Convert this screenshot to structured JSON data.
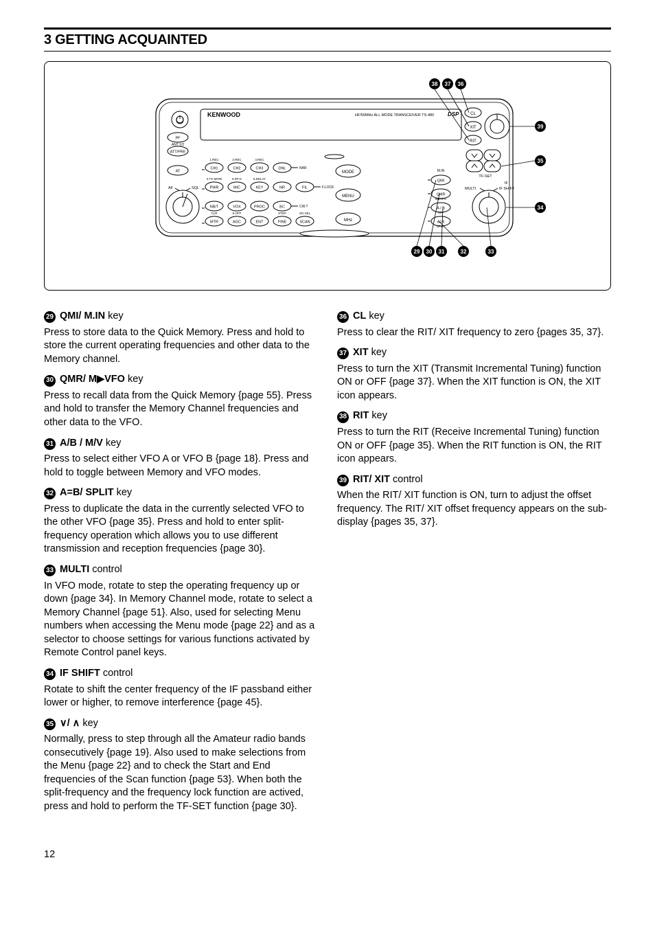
{
  "header": {
    "title": "3  GETTING ACQUAINTED"
  },
  "page_number": "12",
  "diagram": {
    "brand": "KENWOOD",
    "subtitle": "HF/50MHz  ALL MODE TRANSCEIVER  TS-480",
    "dsp": "DSP",
    "left_buttons": [
      "PF",
      "ATT/PRE",
      "AT"
    ],
    "ant_label": "ANT 1/2",
    "knob_left_labels": {
      "left": "AF",
      "right": "SQL"
    },
    "knob_right_labels": {
      "left": "MULTI",
      "right": "IF SHIFT",
      "top": "IF"
    },
    "upper_row_top": [
      "1.REC",
      "2.REC",
      "3.REC"
    ],
    "upper_row": [
      "CH1",
      "CH2",
      "CH3",
      "DNL"
    ],
    "upper_row_side": "NAR",
    "mode_label": "MODE",
    "mid_row_top": [
      "4.TX MONI",
      "5.RF.G",
      "6.DELAY"
    ],
    "mid_row": [
      "PWR",
      "MIC",
      "KEY",
      "NR",
      "FIL"
    ],
    "mid_row_side": "F.LOCK",
    "menu_label": "MENU",
    "low1_row": [
      "NB/T",
      "VOX",
      "PROC",
      "BC"
    ],
    "low1_side": "CW.T",
    "low2_top": [
      "CLR",
      "5.OFF",
      "",
      "STEP",
      "SG.SEL"
    ],
    "low2_row": [
      "MTR",
      "AGC",
      "ENT",
      "FINE",
      "SCAN"
    ],
    "mhz_label": "MHz",
    "right_stack_top": [
      "M.IN"
    ],
    "right_stack": [
      "QMI",
      "QMR",
      "A / B",
      "A=B"
    ],
    "right_stack_side": [
      "M▶VFO",
      "M/V",
      "SPLIT"
    ],
    "tfset": "TF-SET",
    "cl_label": "CL",
    "xit_label": "XIT",
    "rit_label": "RIT",
    "callouts_bottom": [
      "29",
      "30",
      "31",
      "32",
      "33"
    ],
    "callouts_top": [
      "38",
      "37",
      "36"
    ],
    "callouts_right": [
      "39",
      "35",
      "34"
    ]
  },
  "items_left": [
    {
      "n": "29",
      "title_bold": "QMI/ M.IN",
      "title_rest": " key",
      "body": "Press to store data to the Quick Memory.  Press and hold to store the current operating frequencies and other data to the Memory channel."
    },
    {
      "n": "30",
      "title_bold": "QMR/ M▶VFO",
      "title_rest": " key",
      "body": "Press to recall data from the Quick Memory {page 55}.  Press and hold to transfer the Memory Channel frequencies and other data to the VFO."
    },
    {
      "n": "31",
      "title_bold": "A/B / M/V",
      "title_rest": " key",
      "body": "Press to select either VFO A or VFO B {page 18}.  Press and hold to toggle between Memory and VFO modes."
    },
    {
      "n": "32",
      "title_bold": "A=B/ SPLIT",
      "title_rest": " key",
      "body": "Press to duplicate the data in the currently selected VFO to the other VFO {page 35}.  Press and hold to enter split-frequency operation which allows you to use different transmission and reception frequencies {page 30}."
    },
    {
      "n": "33",
      "title_bold": "MULTI",
      "title_rest": " control",
      "body": "In VFO mode, rotate to step the operating frequency up or down {page 34}.  In Memory Channel mode, rotate to select a Memory Channel {page 51}.  Also, used for selecting Menu numbers when accessing the Menu mode {page 22} and as a selector to choose settings for various functions activated by Remote Control panel keys."
    },
    {
      "n": "34",
      "title_bold": "IF SHIFT",
      "title_rest": " control",
      "body": "Rotate to shift the center frequency of the IF passband either lower or higher, to remove interference {page 45}."
    },
    {
      "n": "35",
      "title_bold": "∨/ ∧",
      "title_rest": " key",
      "body": "Normally, press to step through all the Amateur radio bands consecutively {page 19}.  Also used to make selections from the Menu {page 22} and to check the Start and End frequencies of the Scan function {page 53}.  When both the split-frequency and the frequency lock function are actived, press and hold to perform the TF-SET function {page 30}."
    }
  ],
  "items_right": [
    {
      "n": "36",
      "title_bold": "CL",
      "title_rest": " key",
      "body": "Press to clear the RIT/ XIT frequency to zero {pages 35, 37}."
    },
    {
      "n": "37",
      "title_bold": "XIT",
      "title_rest": " key",
      "body": "Press to turn the XIT (Transmit Incremental Tuning) function ON or OFF {page 37}.  When the XIT function is ON, the XIT icon appears."
    },
    {
      "n": "38",
      "title_bold": "RIT",
      "title_rest": " key",
      "body": "Press to turn the RIT (Receive Incremental Tuning) function ON or OFF {page 35}.  When the RIT function is ON, the RIT icon appears."
    },
    {
      "n": "39",
      "title_bold": "RIT/ XIT",
      "title_rest": " control",
      "body": "When the RIT/ XIT function is ON, turn to adjust the offset frequency.  The RIT/ XIT offset frequency appears on the sub-display {pages 35, 37}."
    }
  ]
}
